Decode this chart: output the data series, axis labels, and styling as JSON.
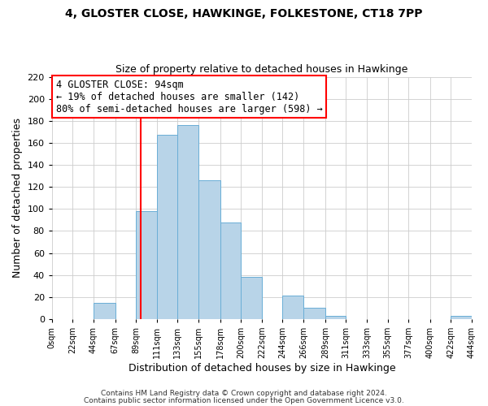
{
  "title1": "4, GLOSTER CLOSE, HAWKINGE, FOLKESTONE, CT18 7PP",
  "title2": "Size of property relative to detached houses in Hawkinge",
  "xlabel": "Distribution of detached houses by size in Hawkinge",
  "ylabel": "Number of detached properties",
  "bar_edges": [
    0,
    22,
    44,
    67,
    89,
    111,
    133,
    155,
    178,
    200,
    222,
    244,
    266,
    289,
    311,
    333,
    355,
    377,
    400,
    422,
    444
  ],
  "bar_heights": [
    0,
    0,
    15,
    0,
    98,
    167,
    176,
    126,
    88,
    38,
    0,
    21,
    10,
    3,
    0,
    0,
    0,
    0,
    0,
    3
  ],
  "bar_color": "#b8d4e8",
  "bar_edge_color": "#6aaed6",
  "vline_x": 94,
  "vline_color": "red",
  "ylim": [
    0,
    220
  ],
  "yticks": [
    0,
    20,
    40,
    60,
    80,
    100,
    120,
    140,
    160,
    180,
    200,
    220
  ],
  "xtick_labels": [
    "0sqm",
    "22sqm",
    "44sqm",
    "67sqm",
    "89sqm",
    "111sqm",
    "133sqm",
    "155sqm",
    "178sqm",
    "200sqm",
    "222sqm",
    "244sqm",
    "266sqm",
    "289sqm",
    "311sqm",
    "333sqm",
    "355sqm",
    "377sqm",
    "400sqm",
    "422sqm",
    "444sqm"
  ],
  "annotation_title": "4 GLOSTER CLOSE: 94sqm",
  "annotation_line1": "← 19% of detached houses are smaller (142)",
  "annotation_line2": "80% of semi-detached houses are larger (598) →",
  "footer1": "Contains HM Land Registry data © Crown copyright and database right 2024.",
  "footer2": "Contains public sector information licensed under the Open Government Licence v3.0."
}
